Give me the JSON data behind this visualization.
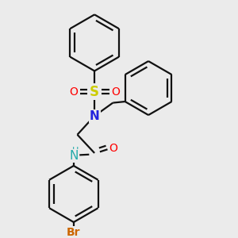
{
  "bg_color": "#ebebeb",
  "atom_colors": {
    "N_sulfonamide": "#2222dd",
    "N_amide": "#22aaaa",
    "S": "#cccc00",
    "O": "#ff0000",
    "Br": "#cc6600",
    "H": "#22aaaa"
  },
  "line_color": "#111111",
  "line_width": 1.6,
  "font_size_atom": 10,
  "font_size_H": 8,
  "font_size_Br": 10
}
